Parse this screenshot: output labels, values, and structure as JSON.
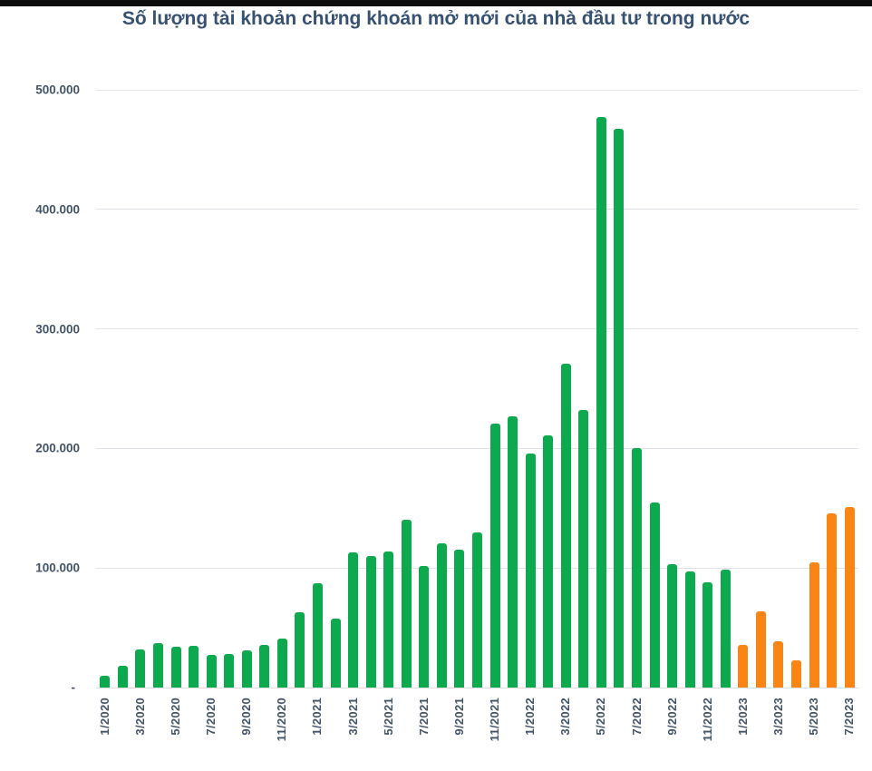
{
  "chart_data": {
    "type": "bar",
    "title": "Số lượng tài khoản chứng khoán mở mới của nhà đầu tư trong nước",
    "categories": [
      "1/2020",
      "2/2020",
      "3/2020",
      "4/2020",
      "5/2020",
      "6/2020",
      "7/2020",
      "8/2020",
      "9/2020",
      "10/2020",
      "11/2020",
      "12/2020",
      "1/2021",
      "2/2021",
      "3/2021",
      "4/2021",
      "5/2021",
      "6/2021",
      "7/2021",
      "8/2021",
      "9/2021",
      "10/2021",
      "11/2021",
      "12/2021",
      "1/2022",
      "2/2022",
      "3/2022",
      "4/2022",
      "5/2022",
      "6/2022",
      "7/2022",
      "8/2022",
      "9/2022",
      "10/2022",
      "11/2022",
      "12/2022",
      "1/2023",
      "2/2023",
      "3/2023",
      "4/2023",
      "5/2023",
      "6/2023",
      "7/2023"
    ],
    "values": [
      10000,
      18000,
      32000,
      37000,
      34000,
      35000,
      27000,
      28000,
      31000,
      36000,
      41000,
      63000,
      87000,
      58000,
      113000,
      110000,
      114000,
      140000,
      102000,
      121000,
      115000,
      130000,
      221000,
      227000,
      196000,
      211000,
      271000,
      232000,
      477000,
      467000,
      200000,
      155000,
      103000,
      97000,
      88000,
      99000,
      36000,
      64000,
      39000,
      23000,
      105000,
      146000,
      151000
    ],
    "xlabel": "",
    "ylabel": "",
    "ylim": [
      0,
      500000
    ],
    "grid": true,
    "legend_position": "none",
    "x_tick_every": 2,
    "y_ticks": [
      {
        "label": "500.000",
        "value": 500000
      },
      {
        "label": "400.000",
        "value": 400000
      },
      {
        "label": "300.000",
        "value": 300000
      },
      {
        "label": "200.000",
        "value": 200000
      },
      {
        "label": "100.000",
        "value": 100000
      },
      {
        "label": "-",
        "value": 0
      }
    ],
    "color_segments": [
      {
        "from": 0,
        "to": 35,
        "color": "#0ca94f",
        "meaning": "months 1/2020 - 12/2022"
      },
      {
        "from": 36,
        "to": 42,
        "color": "#fa8414",
        "meaning": "months 1/2023 - 7/2023"
      }
    ],
    "colors": {
      "title_text": "#375172",
      "axis_text": "#44546a",
      "gridline": "#e0e4e8",
      "top_strip": "#0d0d0d",
      "background": "#ffffff"
    }
  }
}
